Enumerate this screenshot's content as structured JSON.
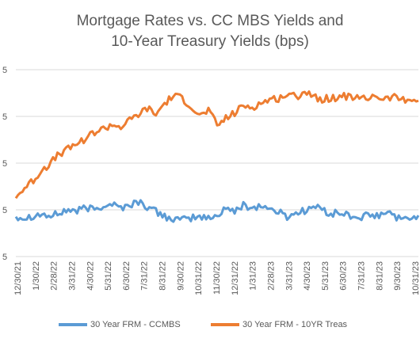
{
  "colors": {
    "series_ccmbs": "#5b9bd5",
    "series_10yr": "#ed7d31",
    "gridline": "#d9d9d9",
    "axis_text": "#595959"
  },
  "chart_data": {
    "type": "line",
    "title_line1": "Mortgage Rates vs. CC MBS Yields and",
    "title_line2": "10-Year Treasury Yields (bps)",
    "xlabel": "",
    "ylabel": "",
    "ylim": [
      0,
      300
    ],
    "y_tick_labels": [
      "5",
      "5",
      "5",
      "5",
      "5"
    ],
    "grid": true,
    "legend_position": "bottom",
    "x_tick_labels": [
      "12/30/21",
      "1/30/22",
      "2/28/22",
      "3/31/22",
      "4/30/22",
      "5/31/22",
      "6/30/22",
      "7/31/22",
      "8/31/22",
      "9/30/22",
      "10/31/22",
      "11/30/22",
      "12/31/22",
      "1/31/23",
      "2/28/23",
      "3/31/23",
      "4/30/23",
      "5/31/23",
      "6/30/23",
      "7/31/23",
      "8/31/23",
      "9/30/23",
      "10/31/23"
    ],
    "series": [
      {
        "name": "30 Year FRM - CCMBS",
        "values": [
          65,
          62,
          66,
          68,
          64,
          70,
          75,
          73,
          78,
          76,
          82,
          85,
          78,
          83,
          88,
          80,
          72,
          65,
          60,
          58,
          62,
          64,
          61,
          65,
          80,
          70,
          84,
          78,
          82,
          76,
          72,
          64,
          70,
          74,
          80,
          76,
          68,
          70,
          66,
          62,
          65,
          64,
          68,
          70,
          58,
          62,
          66
        ]
      },
      {
        "name": "30 Year FRM - 10YR Treas",
        "values": [
          95,
          110,
          122,
          140,
          150,
          165,
          172,
          182,
          190,
          200,
          205,
          212,
          208,
          218,
          228,
          238,
          228,
          246,
          258,
          254,
          242,
          225,
          235,
          210,
          222,
          230,
          242,
          240,
          246,
          252,
          254,
          260,
          256,
          266,
          258,
          252,
          255,
          256,
          258,
          254,
          252,
          260,
          252,
          256,
          254,
          252,
          250
        ]
      }
    ]
  }
}
